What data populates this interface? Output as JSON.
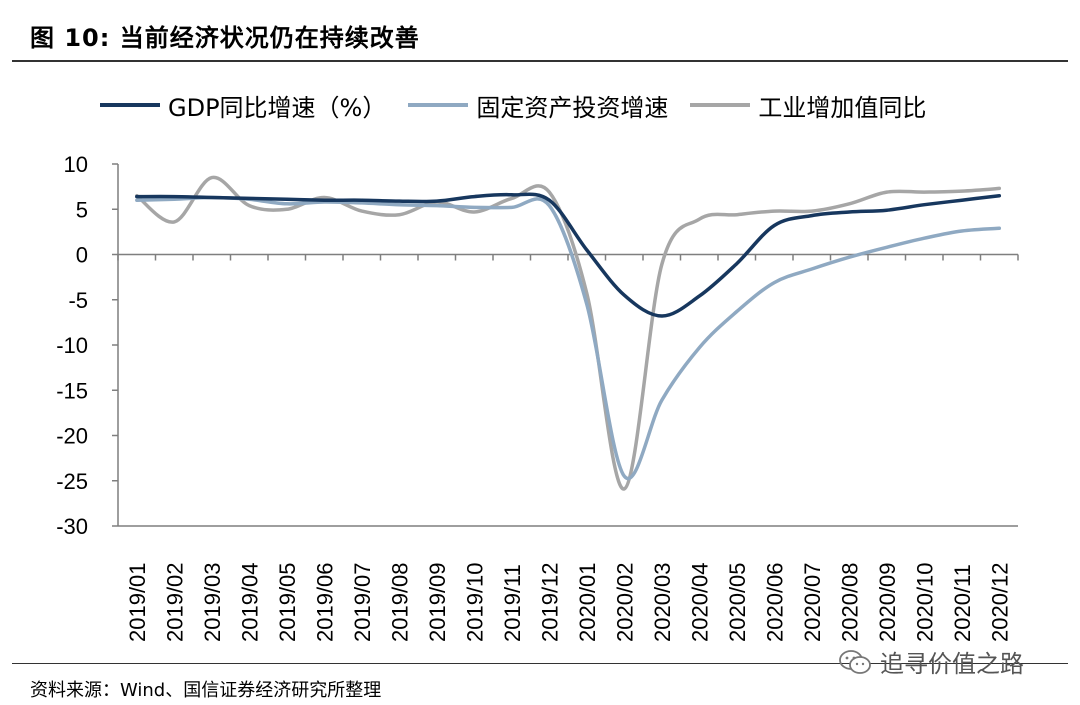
{
  "header": {
    "title": "图 10: 当前经济状况仍在持续改善"
  },
  "footer": {
    "source": "资料来源：Wind、国信证券经济研究所整理",
    "watermark": "追寻价值之路",
    "watermark_icon": "wechat-icon"
  },
  "colors": {
    "gdp": "#17375e",
    "fai": "#8fa9c2",
    "ind": "#a6a6a6",
    "axis": "#7f7f7f"
  },
  "chart_data": {
    "type": "line",
    "categories": [
      "2019/01",
      "2019/02",
      "2019/03",
      "2019/04",
      "2019/05",
      "2019/06",
      "2019/07",
      "2019/08",
      "2019/09",
      "2019/10",
      "2019/11",
      "2019/12",
      "2020/01",
      "2020/02",
      "2020/03",
      "2020/04",
      "2020/05",
      "2020/06",
      "2020/07",
      "2020/08",
      "2020/09",
      "2020/10",
      "2020/11",
      "2020/12"
    ],
    "ylim": [
      -30,
      10
    ],
    "yticks": [
      10,
      5,
      0,
      -5,
      -10,
      -15,
      -20,
      -25,
      -30
    ],
    "legend_position": "top",
    "grid": false,
    "series": [
      {
        "name": "GDP同比增速（%）",
        "key": "gdp",
        "values": [
          6.4,
          6.4,
          6.3,
          6.2,
          6.1,
          6.0,
          6.0,
          5.9,
          5.9,
          6.4,
          6.6,
          6.0,
          0.5,
          -4.5,
          -6.8,
          -4.6,
          -1.0,
          3.2,
          4.3,
          4.7,
          4.9,
          5.5,
          6.0,
          6.5
        ]
      },
      {
        "name": "固定资产投资增速",
        "key": "fai",
        "values": [
          6.0,
          6.1,
          6.3,
          6.1,
          5.6,
          5.8,
          5.7,
          5.5,
          5.4,
          5.2,
          5.2,
          5.4,
          -5.5,
          -24.5,
          -16.1,
          -10.3,
          -6.3,
          -3.1,
          -1.6,
          -0.3,
          0.8,
          1.8,
          2.6,
          2.9
        ]
      },
      {
        "name": "工业增加值同比",
        "key": "ind",
        "values": [
          6.5,
          3.6,
          8.5,
          5.4,
          5.0,
          6.3,
          4.8,
          4.4,
          5.8,
          4.7,
          6.2,
          6.9,
          -4.3,
          -25.9,
          -1.1,
          3.9,
          4.4,
          4.8,
          4.8,
          5.6,
          6.9,
          6.9,
          7.0,
          7.3
        ]
      }
    ]
  }
}
